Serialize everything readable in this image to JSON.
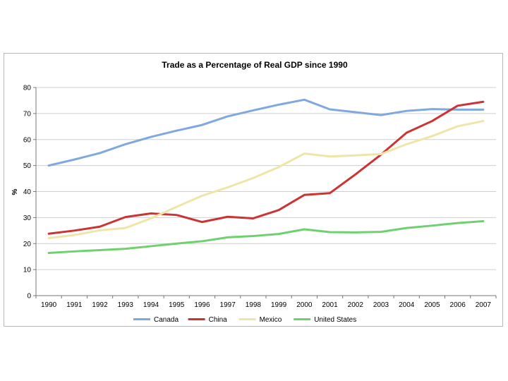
{
  "chart_data": {
    "type": "line",
    "title": "Trade as a Percentage of Real GDP since 1990",
    "xlabel": "",
    "ylabel": "%",
    "ylim": [
      0,
      80
    ],
    "yticks": [
      0,
      10,
      20,
      30,
      40,
      50,
      60,
      70,
      80
    ],
    "categories": [
      "1990",
      "1991",
      "1992",
      "1993",
      "1994",
      "1995",
      "1996",
      "1997",
      "1998",
      "1999",
      "2000",
      "2001",
      "2002",
      "2003",
      "2004",
      "2005",
      "2006",
      "2007"
    ],
    "grid": "horizontal",
    "legend_position": "bottom",
    "series": [
      {
        "name": "Canada",
        "color": "#7fa7e0",
        "values": [
          50,
          52.3,
          54.8,
          58.2,
          61,
          63.4,
          65.6,
          68.9,
          71.2,
          73.4,
          75.3,
          71.6,
          70.5,
          69.4,
          71,
          71.7,
          71.5,
          71.5
        ]
      },
      {
        "name": "China",
        "color": "#cc3333",
        "values": [
          23.8,
          25,
          26.5,
          30.2,
          31.6,
          31,
          28.3,
          30.3,
          29.7,
          32.9,
          38.7,
          39.4,
          46.6,
          54.2,
          62.6,
          67.1,
          73,
          74.5
        ]
      },
      {
        "name": "Mexico",
        "color": "#ede6a8",
        "values": [
          22.1,
          23.3,
          25.1,
          26,
          29.7,
          34.1,
          38.4,
          41.6,
          45.2,
          49.4,
          54.6,
          53.5,
          53.9,
          54.4,
          58.2,
          61.3,
          65.1,
          67.1
        ]
      },
      {
        "name": "United States",
        "color": "#6fd06f",
        "values": [
          16.4,
          17,
          17.5,
          18,
          19,
          20,
          20.9,
          22.4,
          22.9,
          23.7,
          25.5,
          24.4,
          24.3,
          24.5,
          26,
          26.9,
          27.9,
          28.6
        ]
      }
    ]
  }
}
